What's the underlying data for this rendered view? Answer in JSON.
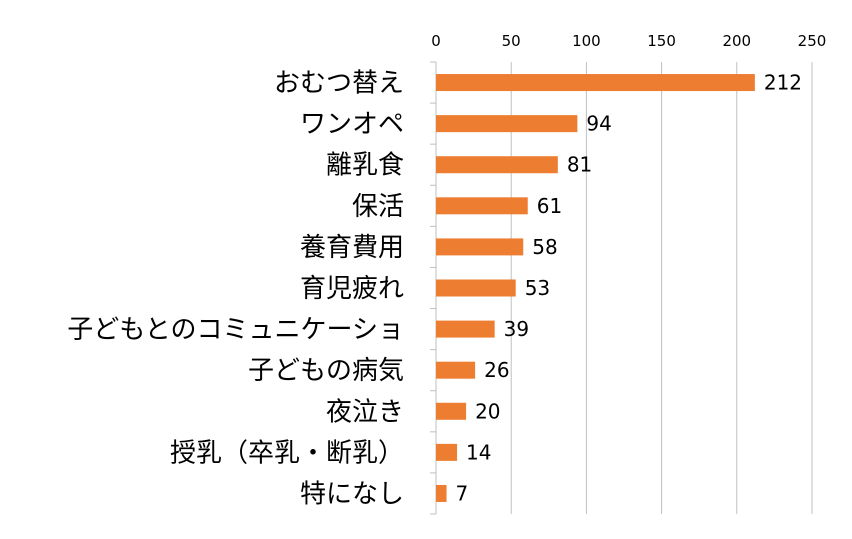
{
  "chart_data": {
    "type": "bar",
    "orientation": "horizontal",
    "categories": [
      "おむつ替え",
      "ワンオペ",
      "離乳食",
      "保活",
      "養育費用",
      "育児疲れ",
      "子どもとのコミュニケーショ",
      "子どもの病気",
      "夜泣き",
      "授乳（卒乳・断乳）",
      "特になし"
    ],
    "values": [
      212,
      94,
      81,
      61,
      58,
      53,
      39,
      26,
      20,
      14,
      7
    ],
    "xlim": [
      0,
      250
    ],
    "ticks": [
      0,
      50,
      100,
      150,
      200,
      250
    ],
    "tick_labels": [
      "0",
      "50",
      "100",
      "150",
      "200",
      "250"
    ],
    "axis_position": "top",
    "grid": true,
    "legend": "none",
    "title": "",
    "xlabel": "",
    "ylabel": "",
    "colors": {
      "bar": "#ED7D31",
      "grid": "#BFBFBF",
      "axis": "#BFBFBF"
    }
  }
}
